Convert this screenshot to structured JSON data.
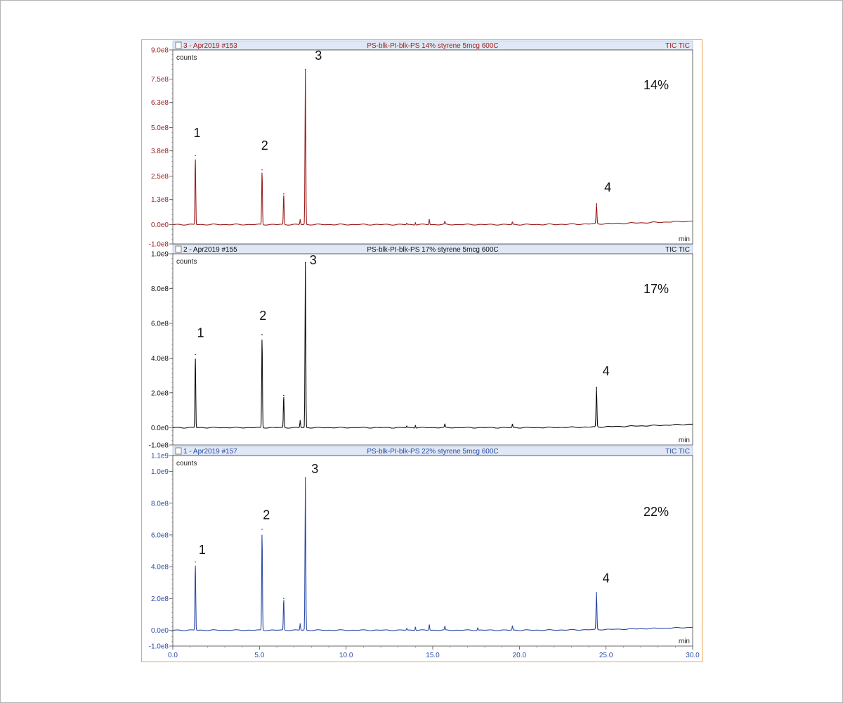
{
  "chart_data": [
    {
      "type": "line",
      "header": {
        "sample": "3 - Apr2019 #153",
        "description": "PS-blk-PI-blk-PS 14% styrene 5mcg 600C",
        "signal": "TIC TIC"
      },
      "ylabel": "counts",
      "xlabel": "min",
      "annotation": "14%",
      "color": "#9b1c1c",
      "ylim": [
        -100000000,
        900000000
      ],
      "yticks": [
        "9.0e8",
        "7.5e8",
        "6.3e8",
        "5.0e8",
        "3.8e8",
        "2.5e8",
        "1.3e8",
        "0.0e0",
        "-1.0e8"
      ],
      "ytick_values": [
        900000000,
        750000000,
        630000000,
        500000000,
        380000000,
        250000000,
        130000000,
        0,
        -100000000
      ],
      "peaks": [
        {
          "x": 1.3,
          "y": 355000000,
          "label": "1"
        },
        {
          "x": 5.15,
          "y": 282000000,
          "label": "2"
        },
        {
          "x": 6.4,
          "y": 158000000
        },
        {
          "x": 7.35,
          "y": 25000000
        },
        {
          "x": 7.65,
          "y": 800000000,
          "label": "3"
        },
        {
          "x": 13.5,
          "y": 6000000
        },
        {
          "x": 14.0,
          "y": 9000000
        },
        {
          "x": 14.8,
          "y": 25000000
        },
        {
          "x": 15.7,
          "y": 14000000
        },
        {
          "x": 19.6,
          "y": 12000000
        },
        {
          "x": 24.45,
          "y": 105000000,
          "label": "4"
        }
      ],
      "peak_label_offsets": {
        "1": [
          1.4,
          450000000
        ],
        "2": [
          5.3,
          385000000
        ],
        "3": [
          8.4,
          850000000
        ],
        "4": [
          25.1,
          170000000
        ]
      },
      "baseline_end": 18000000
    },
    {
      "type": "line",
      "header": {
        "sample": "2 - Apr2019 #155",
        "description": "PS-blk-PI-blk-PS 17% styrene 5mcg 600C",
        "signal": "TIC TIC"
      },
      "ylabel": "counts",
      "xlabel": "min",
      "annotation": "17%",
      "color": "#111111",
      "ylim": [
        -100000000,
        1000000000
      ],
      "yticks": [
        "1.0e9",
        "8.0e8",
        "6.0e8",
        "4.0e8",
        "2.0e8",
        "0.0e0",
        "-1.0e8"
      ],
      "ytick_values": [
        1000000000,
        800000000,
        600000000,
        400000000,
        200000000,
        0,
        -100000000
      ],
      "peaks": [
        {
          "x": 1.3,
          "y": 420000000,
          "label": "1"
        },
        {
          "x": 5.15,
          "y": 535000000,
          "label": "2"
        },
        {
          "x": 6.4,
          "y": 185000000
        },
        {
          "x": 7.35,
          "y": 40000000
        },
        {
          "x": 7.65,
          "y": 950000000,
          "label": "3"
        },
        {
          "x": 13.5,
          "y": 8000000
        },
        {
          "x": 14.0,
          "y": 12000000
        },
        {
          "x": 15.7,
          "y": 18000000
        },
        {
          "x": 19.6,
          "y": 18000000
        },
        {
          "x": 24.45,
          "y": 230000000,
          "label": "4"
        }
      ],
      "peak_label_offsets": {
        "1": [
          1.6,
          520000000
        ],
        "2": [
          5.2,
          620000000
        ],
        "3": [
          8.1,
          940000000
        ],
        "4": [
          25.0,
          300000000
        ]
      },
      "baseline_end": 20000000
    },
    {
      "type": "line",
      "header": {
        "sample": "1 - Apr2019 #157",
        "description": "PS-blk-PI-blk-PS 22% styrene 5mcg 600C",
        "signal": "TIC TIC"
      },
      "ylabel": "counts",
      "xlabel": "min",
      "annotation": "22%",
      "color": "#2a4aa6",
      "ylim": [
        -100000000,
        1100000000
      ],
      "yticks": [
        "1.1e9",
        "1.0e9",
        "8.0e8",
        "6.0e8",
        "4.0e8",
        "2.0e8",
        "0.0e0",
        "-1.0e8"
      ],
      "ytick_values": [
        1100000000,
        1000000000,
        800000000,
        600000000,
        400000000,
        200000000,
        0,
        -100000000
      ],
      "peaks": [
        {
          "x": 1.3,
          "y": 430000000,
          "label": "1"
        },
        {
          "x": 5.15,
          "y": 635000000,
          "label": "2"
        },
        {
          "x": 6.4,
          "y": 200000000
        },
        {
          "x": 7.35,
          "y": 40000000
        },
        {
          "x": 7.65,
          "y": 960000000,
          "label": "3"
        },
        {
          "x": 13.5,
          "y": 10000000
        },
        {
          "x": 14.0,
          "y": 18000000
        },
        {
          "x": 14.8,
          "y": 32000000
        },
        {
          "x": 15.7,
          "y": 22000000
        },
        {
          "x": 17.6,
          "y": 14000000
        },
        {
          "x": 19.6,
          "y": 25000000
        },
        {
          "x": 24.45,
          "y": 235000000,
          "label": "4"
        }
      ],
      "peak_label_offsets": {
        "1": [
          1.7,
          480000000
        ],
        "2": [
          5.4,
          700000000
        ],
        "3": [
          8.2,
          990000000
        ],
        "4": [
          25.0,
          300000000
        ]
      },
      "baseline_end": 18000000
    }
  ],
  "x_axis": {
    "range": [
      0,
      30
    ],
    "tick_labels": [
      "0.0",
      "5.0",
      "10.0",
      "15.0",
      "20.0",
      "25.0",
      "30.0"
    ],
    "tick_values": [
      0,
      5,
      10,
      15,
      20,
      25,
      30
    ]
  },
  "colors": {
    "frame_border": "#e9a45a",
    "header_bg": "#dfe8f4",
    "axis": "#333333"
  }
}
